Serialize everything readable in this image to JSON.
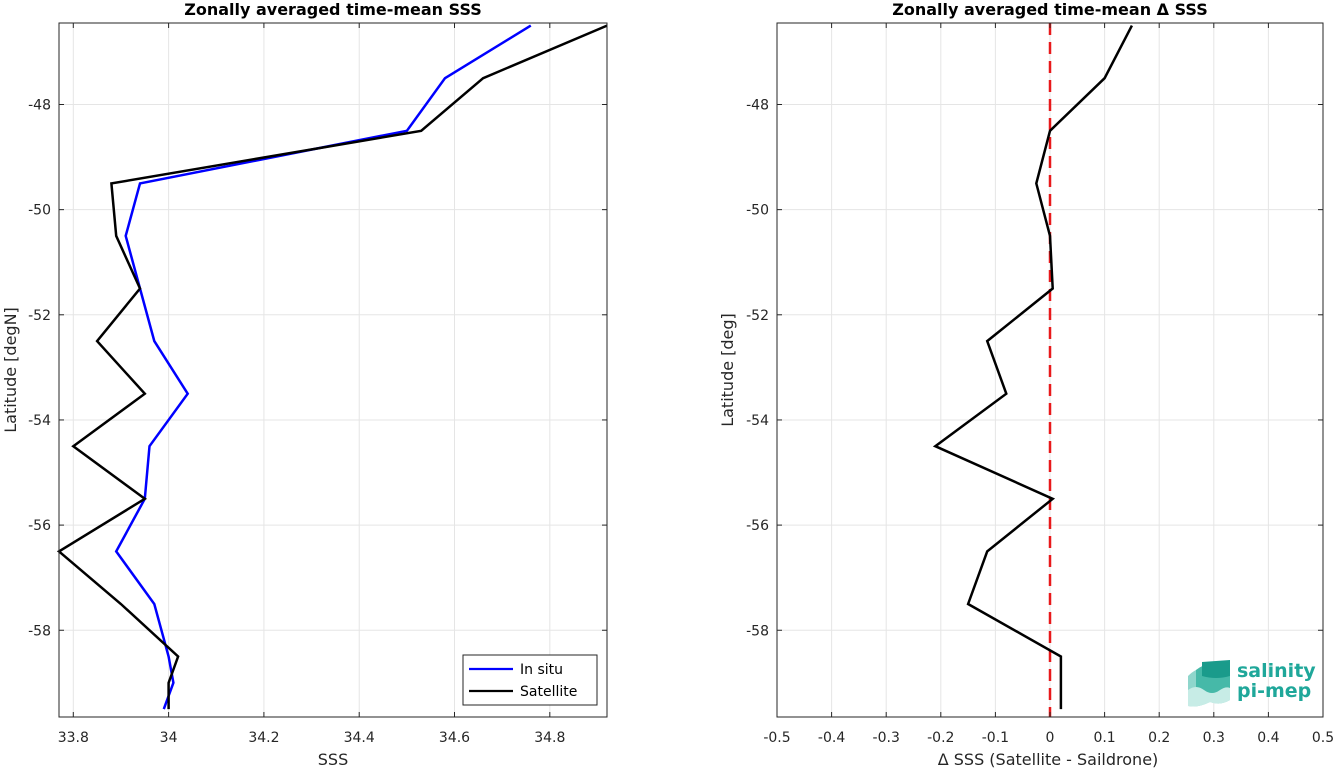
{
  "chart_data": [
    {
      "type": "line",
      "title": "Zonally averaged time-mean SSS",
      "xlabel": "SSS",
      "ylabel": "Latitude [degN]",
      "xlim": [
        33.77,
        34.92
      ],
      "ylim": [
        -59.65,
        -46.45
      ],
      "xticks": [
        33.8,
        34,
        34.2,
        34.4,
        34.6,
        34.8
      ],
      "xtick_labels": [
        "33.8",
        "34",
        "34.2",
        "34.4",
        "34.6",
        "34.8"
      ],
      "yticks": [
        -58,
        -56,
        -54,
        -52,
        -50,
        -48
      ],
      "ytick_labels": [
        "-58",
        "-56",
        "-54",
        "-52",
        "-50",
        "-48"
      ],
      "grid": true,
      "legend_position": "bottom-right",
      "series": [
        {
          "name": "In situ",
          "color": "#0000ff",
          "x": [
            33.99,
            34.01,
            34.0,
            33.97,
            33.89,
            33.95,
            33.96,
            34.04,
            33.97,
            33.94,
            33.91,
            33.94,
            34.5,
            34.58,
            34.76
          ],
          "y": [
            -59.5,
            -59.0,
            -58.5,
            -57.5,
            -56.5,
            -55.5,
            -54.5,
            -53.5,
            -52.5,
            -51.5,
            -50.5,
            -49.5,
            -48.5,
            -47.5,
            -46.5
          ]
        },
        {
          "name": "Satellite",
          "color": "#000000",
          "x": [
            34.0,
            34.0,
            34.02,
            33.9,
            33.77,
            33.95,
            33.8,
            33.95,
            33.85,
            33.94,
            33.89,
            33.88,
            34.53,
            34.66,
            34.92
          ],
          "y": [
            -59.5,
            -59.0,
            -58.5,
            -57.5,
            -56.5,
            -55.5,
            -54.5,
            -53.5,
            -52.5,
            -51.5,
            -50.5,
            -49.5,
            -48.5,
            -47.5,
            -46.5
          ]
        }
      ]
    },
    {
      "type": "line",
      "title": "Zonally averaged time-mean Δ SSS",
      "xlabel": "Δ SSS (Satellite - Saildrone)",
      "ylabel": "Latitude [deg]",
      "xlim": [
        -0.5,
        0.5
      ],
      "ylim": [
        -59.65,
        -46.45
      ],
      "xticks": [
        -0.5,
        -0.4,
        -0.3,
        -0.2,
        -0.1,
        0,
        0.1,
        0.2,
        0.3,
        0.4,
        0.5
      ],
      "xtick_labels": [
        "-0.5",
        "-0.4",
        "-0.3",
        "-0.2",
        "-0.1",
        "0",
        "0.1",
        "0.2",
        "0.3",
        "0.4",
        "0.5"
      ],
      "yticks": [
        -58,
        -56,
        -54,
        -52,
        -50,
        -48
      ],
      "ytick_labels": [
        "-58",
        "-56",
        "-54",
        "-52",
        "-50",
        "-48"
      ],
      "grid": true,
      "zero_line_color": "#e8191b",
      "series": [
        {
          "color": "#000000",
          "x": [
            0.02,
            0.02,
            0.02,
            -0.15,
            -0.115,
            0.005,
            -0.21,
            -0.08,
            -0.115,
            0.005,
            0.0,
            -0.025,
            0.0,
            0.1,
            0.15
          ],
          "y": [
            -59.5,
            -59.0,
            -58.5,
            -57.5,
            -56.5,
            -55.5,
            -54.5,
            -53.5,
            -52.5,
            -51.5,
            -50.5,
            -49.5,
            -48.5,
            -47.5,
            -46.5
          ]
        }
      ]
    }
  ],
  "logo": {
    "line1": "salinity",
    "line2": "pi-mep",
    "color": "#1fa79a"
  }
}
